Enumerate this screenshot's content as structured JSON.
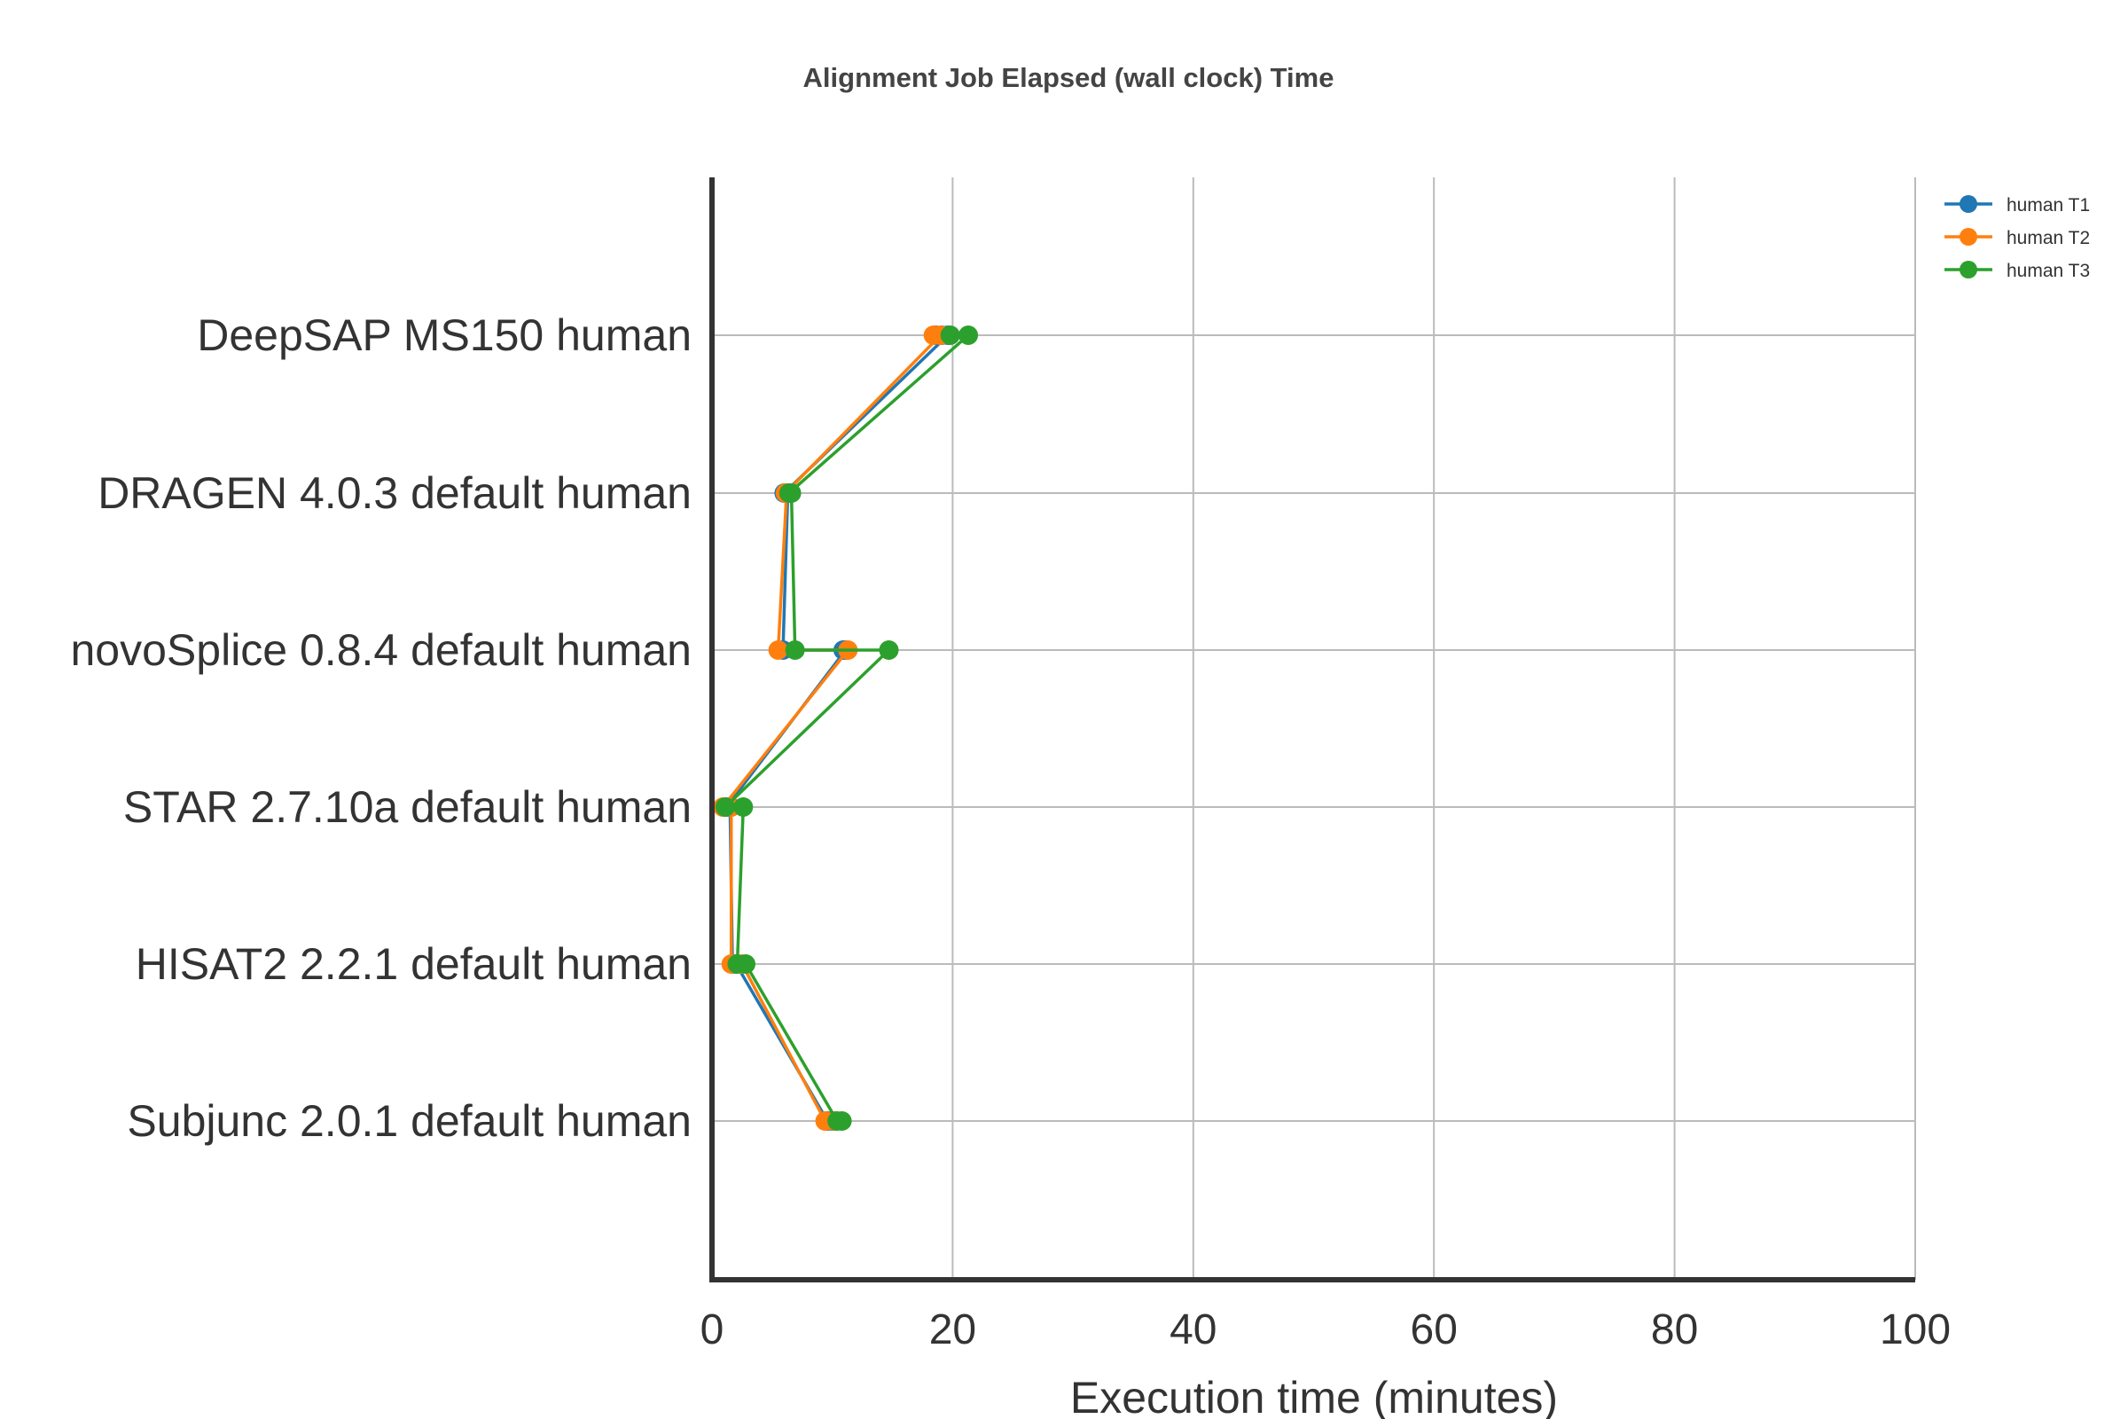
{
  "chart_data": {
    "type": "scatter",
    "title": "Alignment Job Elapsed (wall clock) Time",
    "xlabel": "Execution time (minutes)",
    "ylabel": "",
    "xlim": [
      0,
      100
    ],
    "xticks": [
      "0",
      "20",
      "40",
      "60",
      "80",
      "100"
    ],
    "categories": [
      "DeepSAP MS150 human",
      "DRAGEN 4.0.3 default human",
      "novoSplice 0.8.4 default human",
      "STAR 2.7.10a default human",
      "HISAT2 2.2.1 default human",
      "Subjunc 2.0.1 default human"
    ],
    "grid": true,
    "legend_position": "top-right",
    "series": [
      {
        "name": "human T1",
        "color": "#1f77b4",
        "points": [
          {
            "x": 18.6,
            "category": "DeepSAP MS150 human"
          },
          {
            "x": 19.1,
            "category": "DeepSAP MS150 human"
          },
          {
            "x": 19.6,
            "category": "DeepSAP MS150 human"
          },
          {
            "x": 6.0,
            "category": "DRAGEN 4.0.3 default human"
          },
          {
            "x": 6.3,
            "category": "DRAGEN 4.0.3 default human"
          },
          {
            "x": 5.9,
            "category": "novoSplice 0.8.4 default human"
          },
          {
            "x": 10.9,
            "category": "novoSplice 0.8.4 default human"
          },
          {
            "x": 11.1,
            "category": "novoSplice 0.8.4 default human"
          },
          {
            "x": 1.2,
            "category": "STAR 2.7.10a default human"
          },
          {
            "x": 1.5,
            "category": "STAR 2.7.10a default human"
          },
          {
            "x": 1.7,
            "category": "HISAT2 2.2.1 default human"
          },
          {
            "x": 2.0,
            "category": "HISAT2 2.2.1 default human"
          },
          {
            "x": 9.6,
            "category": "Subjunc 2.0.1 default human"
          },
          {
            "x": 10.0,
            "category": "Subjunc 2.0.1 default human"
          }
        ]
      },
      {
        "name": "human T2",
        "color": "#ff7f0e",
        "points": [
          {
            "x": 18.4,
            "category": "DeepSAP MS150 human"
          },
          {
            "x": 19.0,
            "category": "DeepSAP MS150 human"
          },
          {
            "x": 6.1,
            "category": "DRAGEN 4.0.3 default human"
          },
          {
            "x": 6.2,
            "category": "DRAGEN 4.0.3 default human"
          },
          {
            "x": 5.5,
            "category": "novoSplice 0.8.4 default human"
          },
          {
            "x": 11.3,
            "category": "novoSplice 0.8.4 default human"
          },
          {
            "x": 0.9,
            "category": "STAR 2.7.10a default human"
          },
          {
            "x": 1.6,
            "category": "STAR 2.7.10a default human"
          },
          {
            "x": 1.6,
            "category": "HISAT2 2.2.1 default human"
          },
          {
            "x": 2.5,
            "category": "HISAT2 2.2.1 default human"
          },
          {
            "x": 9.4,
            "category": "Subjunc 2.0.1 default human"
          },
          {
            "x": 10.2,
            "category": "Subjunc 2.0.1 default human"
          }
        ]
      },
      {
        "name": "human T3",
        "color": "#2ca02c",
        "points": [
          {
            "x": 19.8,
            "category": "DeepSAP MS150 human"
          },
          {
            "x": 21.3,
            "category": "DeepSAP MS150 human"
          },
          {
            "x": 6.4,
            "category": "DRAGEN 4.0.3 default human"
          },
          {
            "x": 6.6,
            "category": "DRAGEN 4.0.3 default human"
          },
          {
            "x": 6.9,
            "category": "novoSplice 0.8.4 default human"
          },
          {
            "x": 14.7,
            "category": "novoSplice 0.8.4 default human"
          },
          {
            "x": 1.1,
            "category": "STAR 2.7.10a default human"
          },
          {
            "x": 2.6,
            "category": "STAR 2.7.10a default human"
          },
          {
            "x": 2.1,
            "category": "HISAT2 2.2.1 default human"
          },
          {
            "x": 2.8,
            "category": "HISAT2 2.2.1 default human"
          },
          {
            "x": 10.4,
            "category": "Subjunc 2.0.1 default human"
          },
          {
            "x": 10.8,
            "category": "Subjunc 2.0.1 default human"
          }
        ]
      }
    ]
  }
}
